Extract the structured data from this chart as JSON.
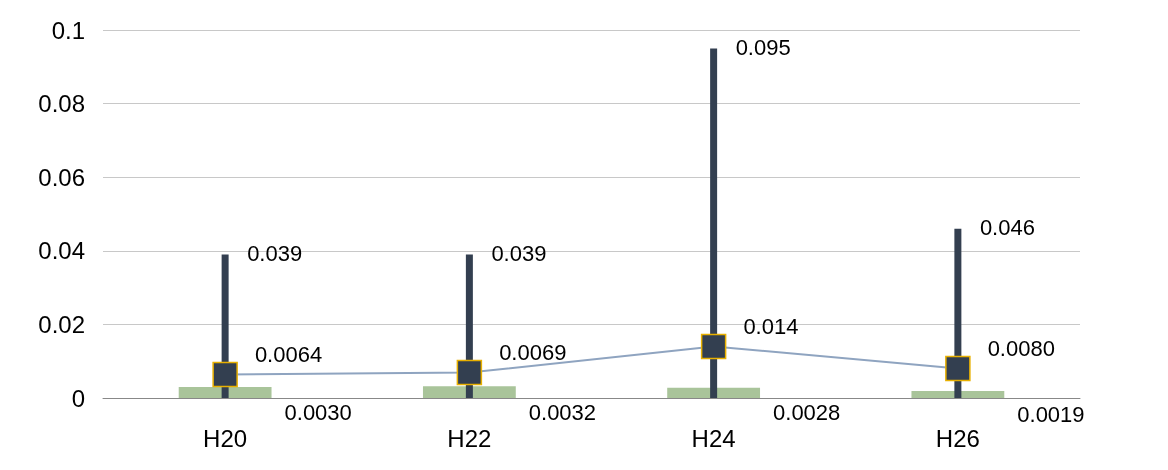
{
  "chart_data": {
    "type": "bar",
    "categories": [
      "H20",
      "H22",
      "H24",
      "H26"
    ],
    "series": [
      {
        "color": "#a9c49a",
        "values": [
          0.003,
          0.0032,
          0.0028,
          0.0019
        ],
        "value_labels": [
          "0.0030",
          "0.0032",
          "0.0028",
          "0.0019"
        ]
      },
      {
        "type": "line",
        "color": "#8fa4c0",
        "values": [
          0.0064,
          0.0069,
          0.014,
          0.008
        ],
        "value_labels": [
          "0.0064",
          "0.0069",
          "0.014",
          "0.0080"
        ],
        "errors": [
          [
            0,
            0.039
          ],
          [
            0,
            0.039
          ],
          [
            0,
            0.095
          ],
          [
            0,
            0.046
          ]
        ]
      }
    ],
    "annotations": [
      {
        "text": "0.039",
        "x": "H20",
        "y": 0.039
      },
      {
        "text": "0.039",
        "x": "H22",
        "y": 0.039
      },
      {
        "text": "0.095",
        "x": "H24",
        "y": 0.095
      },
      {
        "text": "0.046",
        "x": "H26",
        "y": 0.046
      }
    ],
    "ylim": [
      0,
      0.1
    ],
    "yticks": [
      0,
      0.02,
      0.04,
      0.06,
      0.08,
      0.1
    ],
    "grid": "y",
    "marker": "square",
    "line_style": "solid"
  }
}
